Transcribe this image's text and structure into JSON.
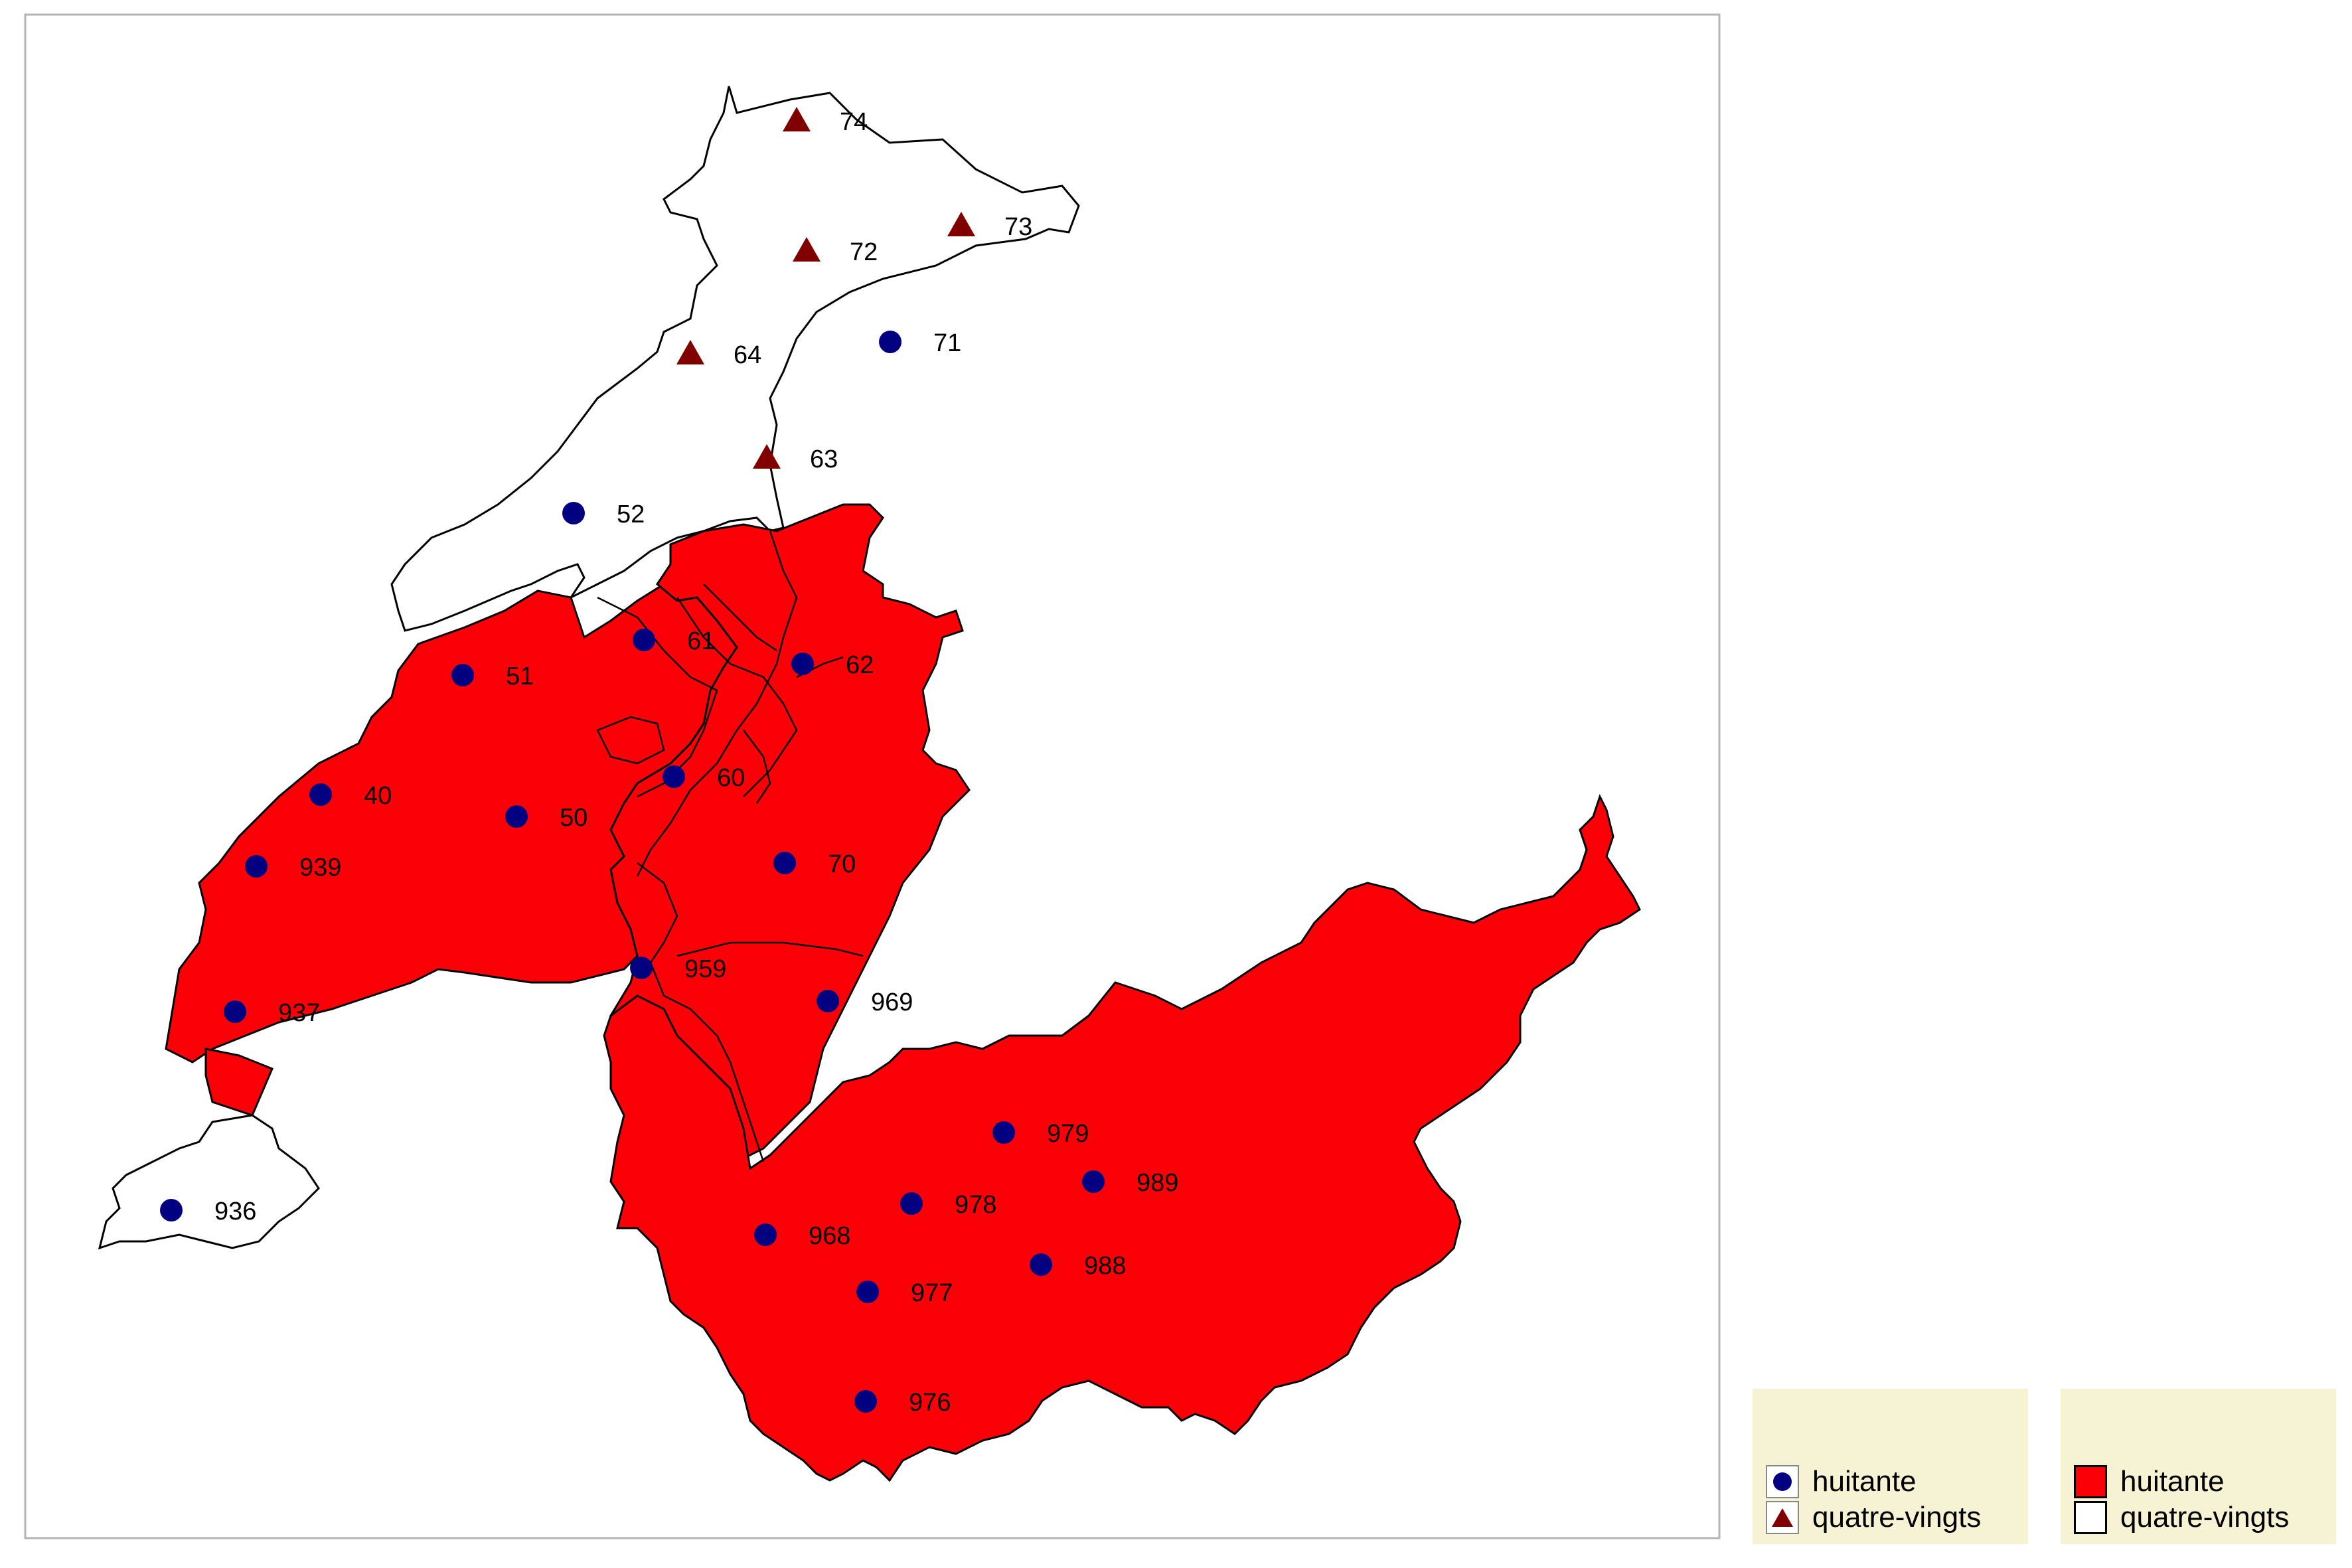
{
  "colors": {
    "frame": "#b3b3b3",
    "red_fill": "#fc0007",
    "white_fill": "#ffffff",
    "outline": "#000000",
    "dot": "#000080",
    "triangle": "#800000",
    "legend_bg": "#f5f3d3"
  },
  "points": [
    {
      "label": "74",
      "symbol": "triangle"
    },
    {
      "label": "73",
      "symbol": "triangle"
    },
    {
      "label": "72",
      "symbol": "triangle"
    },
    {
      "label": "71",
      "symbol": "dot"
    },
    {
      "label": "64",
      "symbol": "triangle"
    },
    {
      "label": "63",
      "symbol": "triangle"
    },
    {
      "label": "52",
      "symbol": "dot"
    },
    {
      "label": "61",
      "symbol": "dot"
    },
    {
      "label": "62",
      "symbol": "dot"
    },
    {
      "label": "51",
      "symbol": "dot"
    },
    {
      "label": "60",
      "symbol": "dot"
    },
    {
      "label": "40",
      "symbol": "dot"
    },
    {
      "label": "50",
      "symbol": "dot"
    },
    {
      "label": "70",
      "symbol": "dot"
    },
    {
      "label": "939",
      "symbol": "dot"
    },
    {
      "label": "959",
      "symbol": "dot"
    },
    {
      "label": "969",
      "symbol": "dot"
    },
    {
      "label": "937",
      "symbol": "dot"
    },
    {
      "label": "979",
      "symbol": "dot"
    },
    {
      "label": "989",
      "symbol": "dot"
    },
    {
      "label": "936",
      "symbol": "dot"
    },
    {
      "label": "978",
      "symbol": "dot"
    },
    {
      "label": "968",
      "symbol": "dot"
    },
    {
      "label": "988",
      "symbol": "dot"
    },
    {
      "label": "977",
      "symbol": "dot"
    },
    {
      "label": "976",
      "symbol": "dot"
    }
  ],
  "legend_points": {
    "items": [
      {
        "label": "huitante",
        "symbol": "dot",
        "color": "#000080"
      },
      {
        "label": "quatre-vingts",
        "symbol": "triangle",
        "color": "#800000"
      }
    ]
  },
  "legend_areas": {
    "items": [
      {
        "label": "huitante",
        "color": "#fc0007"
      },
      {
        "label": "quatre-vingts",
        "color": "#ffffff"
      }
    ]
  }
}
